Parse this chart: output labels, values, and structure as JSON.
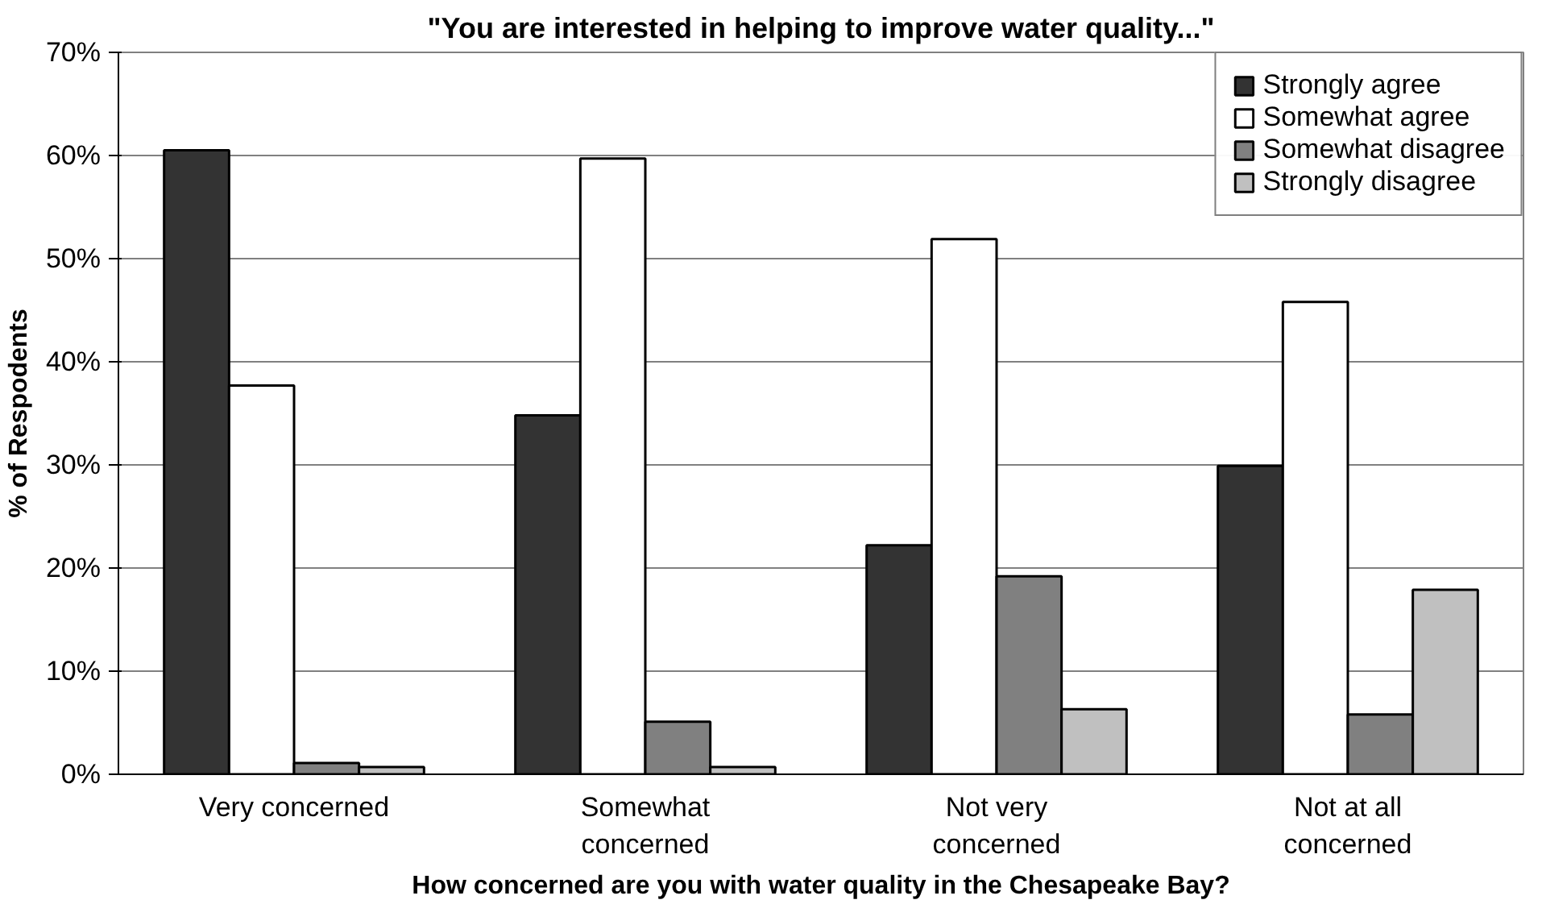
{
  "chart_data": {
    "type": "bar",
    "title": "\"You are interested in helping to improve water quality...\"",
    "xlabel": "How concerned are you with water quality in the Chesapeake Bay?",
    "ylabel": "% of Respodents",
    "categories": [
      "Very concerned",
      "Somewhat concerned",
      "Not very concerned",
      "Not at all concerned"
    ],
    "series": [
      {
        "name": "Strongly agree",
        "color": "#333333",
        "values": [
          60.5,
          34.8,
          22.2,
          29.9
        ]
      },
      {
        "name": "Somewhat agree",
        "color": "#ffffff",
        "values": [
          37.7,
          59.7,
          51.9,
          45.8
        ]
      },
      {
        "name": "Somewhat disagree",
        "color": "#808080",
        "values": [
          1.1,
          5.1,
          19.2,
          5.8
        ]
      },
      {
        "name": "Strongly disagree",
        "color": "#c0c0c0",
        "values": [
          0.7,
          0.7,
          6.3,
          17.9
        ]
      }
    ],
    "ylim": [
      0,
      70
    ],
    "yticks": [
      {
        "value": 0,
        "label": "0%"
      },
      {
        "value": 10,
        "label": "10%"
      },
      {
        "value": 20,
        "label": "20%"
      },
      {
        "value": 30,
        "label": "30%"
      },
      {
        "value": 40,
        "label": "40%"
      },
      {
        "value": 50,
        "label": "50%"
      },
      {
        "value": 60,
        "label": "60%"
      },
      {
        "value": 70,
        "label": "70%"
      }
    ],
    "grid": "y",
    "legend": "top right"
  }
}
